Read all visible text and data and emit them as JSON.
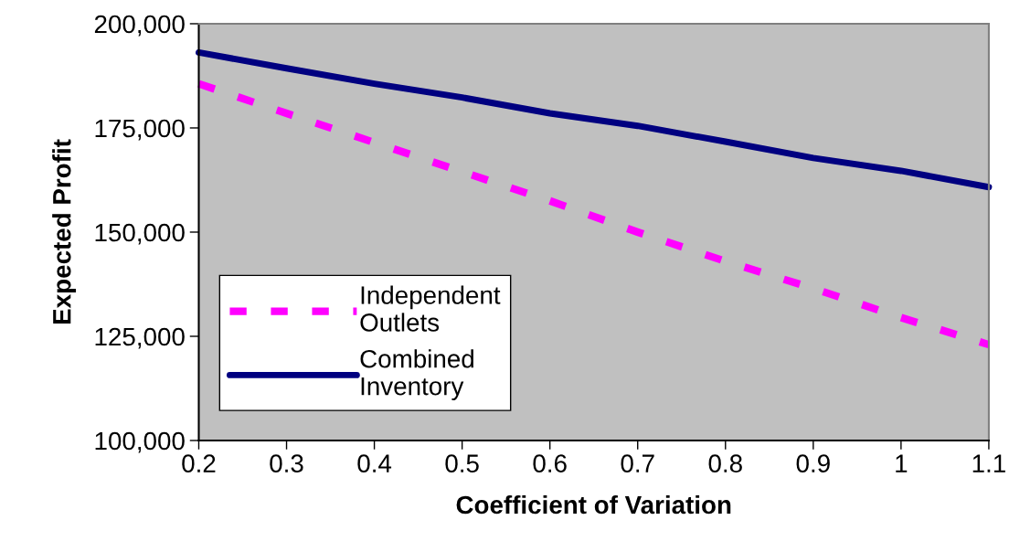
{
  "chart_data": {
    "type": "line",
    "xlabel": "Coefficient of Variation",
    "ylabel": "Expected Profit",
    "x": [
      0.2,
      0.3,
      0.4,
      0.5,
      0.6,
      0.7,
      0.8,
      0.9,
      1.0,
      1.1
    ],
    "series": [
      {
        "name": "Independent\nOutlets",
        "color": "#ff00ff",
        "line_style": "dashed",
        "values": [
          185600,
          178500,
          171500,
          164500,
          157500,
          150000,
          143000,
          136500,
          129500,
          123000
        ]
      },
      {
        "name": "Combined\nInventory",
        "color": "#000080",
        "line_style": "solid",
        "values": [
          193100,
          189300,
          185600,
          182300,
          178500,
          175500,
          171700,
          167800,
          164700,
          160800
        ]
      }
    ],
    "xlim": [
      0.2,
      1.1
    ],
    "xticks": [
      0.2,
      0.3,
      0.4,
      0.5,
      0.6,
      0.7,
      0.8,
      0.9,
      {
        "value": 1.0,
        "label": "1"
      },
      1.1
    ],
    "ylim": [
      100000,
      200000
    ],
    "yticks": [
      {
        "value": 100000,
        "label": "100,000"
      },
      {
        "value": 125000,
        "label": "125,000"
      },
      {
        "value": 150000,
        "label": "150,000"
      },
      {
        "value": 175000,
        "label": "175,000"
      },
      {
        "value": 200000,
        "label": "200,000"
      }
    ],
    "grid": false,
    "legend": "bottom left",
    "marker": "none"
  }
}
